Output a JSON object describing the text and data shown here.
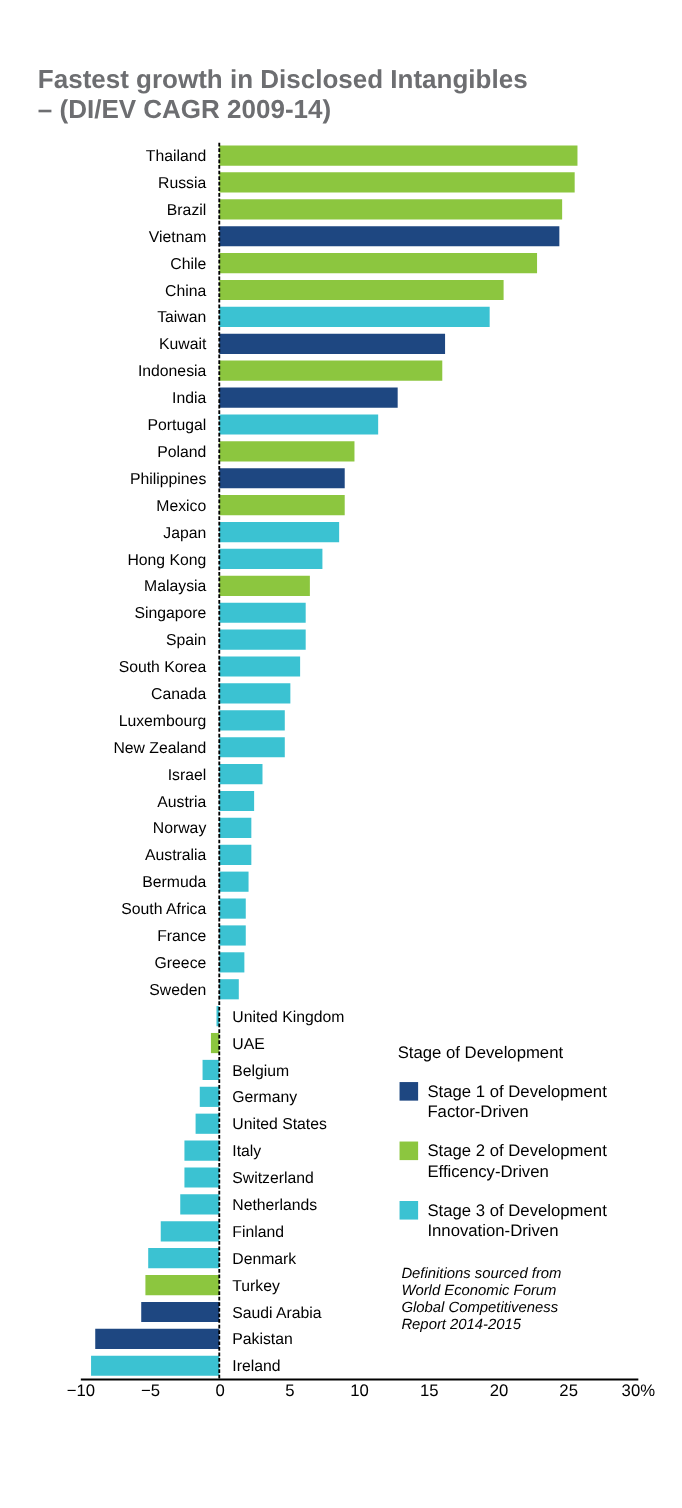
{
  "chart_data": {
    "type": "bar",
    "orientation": "horizontal",
    "title": "Fastest growth in Disclosed Intangibles\n– (DI/EV CAGR 2009-14)",
    "categories": [
      "Thailand",
      "Russia",
      "Brazil",
      "Vietnam",
      "Chile",
      "China",
      "Taiwan",
      "Kuwait",
      "Indonesia",
      "India",
      "Portugal",
      "Poland",
      "Philippines",
      "Mexico",
      "Japan",
      "Hong Kong",
      "Malaysia",
      "Singapore",
      "Spain",
      "South Korea",
      "Canada",
      "Luxembourg",
      "New Zealand",
      "Israel",
      "Austria",
      "Norway",
      "Australia",
      "Bermuda",
      "South Africa",
      "France",
      "Greece",
      "Sweden",
      "United Kingdom",
      "UAE",
      "Belgium",
      "Germany",
      "United States",
      "Italy",
      "Switzerland",
      "Netherlands",
      "Finland",
      "Denmark",
      "Turkey",
      "Saudi Arabia",
      "Pakistan",
      "Ireland"
    ],
    "series": [
      {
        "name": "Stage 1 of Development\nFactor-Driven",
        "color": "#1e4781",
        "values": [
          null,
          null,
          null,
          24.4,
          null,
          null,
          null,
          16.2,
          null,
          12.8,
          null,
          null,
          9.0,
          null,
          null,
          null,
          null,
          null,
          null,
          null,
          null,
          null,
          null,
          null,
          null,
          null,
          null,
          null,
          null,
          null,
          null,
          null,
          null,
          null,
          null,
          null,
          null,
          null,
          null,
          null,
          null,
          null,
          null,
          -5.6,
          -8.9,
          null
        ]
      },
      {
        "name": "Stage 2 of Development\nEfficency-Driven",
        "color": "#8cc63f",
        "values": [
          25.7,
          25.5,
          24.6,
          null,
          22.8,
          20.4,
          null,
          null,
          16.0,
          null,
          null,
          9.7,
          null,
          9.0,
          null,
          null,
          6.5,
          null,
          null,
          null,
          null,
          null,
          null,
          null,
          null,
          null,
          null,
          null,
          null,
          null,
          null,
          null,
          null,
          -0.6,
          null,
          null,
          null,
          null,
          null,
          null,
          null,
          null,
          -5.3,
          null,
          null,
          null
        ]
      },
      {
        "name": "Stage 3 of Development\nInnovation-Driven",
        "color": "#3bc2d2",
        "values": [
          null,
          null,
          null,
          null,
          null,
          null,
          19.4,
          null,
          null,
          null,
          11.4,
          null,
          null,
          null,
          8.6,
          7.4,
          null,
          6.2,
          6.2,
          5.8,
          5.1,
          4.7,
          4.7,
          3.1,
          2.5,
          2.3,
          2.3,
          2.1,
          1.9,
          1.9,
          1.8,
          1.4,
          -0.2,
          null,
          -1.2,
          -1.4,
          -1.7,
          -2.5,
          -2.5,
          -2.8,
          -4.2,
          -5.1,
          null,
          null,
          null,
          -9.2
        ]
      }
    ],
    "legend_title": "Stage of Development",
    "legend": "bottom right",
    "annotations": [
      "Definitions sourced from\nWorld Economic Forum\nGlobal Competitiveness\nReport 2014-2015"
    ],
    "xlim": [
      -10,
      30
    ],
    "xticks": [
      -10,
      -5,
      0,
      5,
      10,
      15,
      20,
      25,
      {
        "value": 30,
        "label": "30%"
      }
    ],
    "ref_lines": [
      {
        "axis": "x",
        "value": 0,
        "color": "#000000",
        "line_style": "dashed"
      }
    ],
    "grid": false
  }
}
